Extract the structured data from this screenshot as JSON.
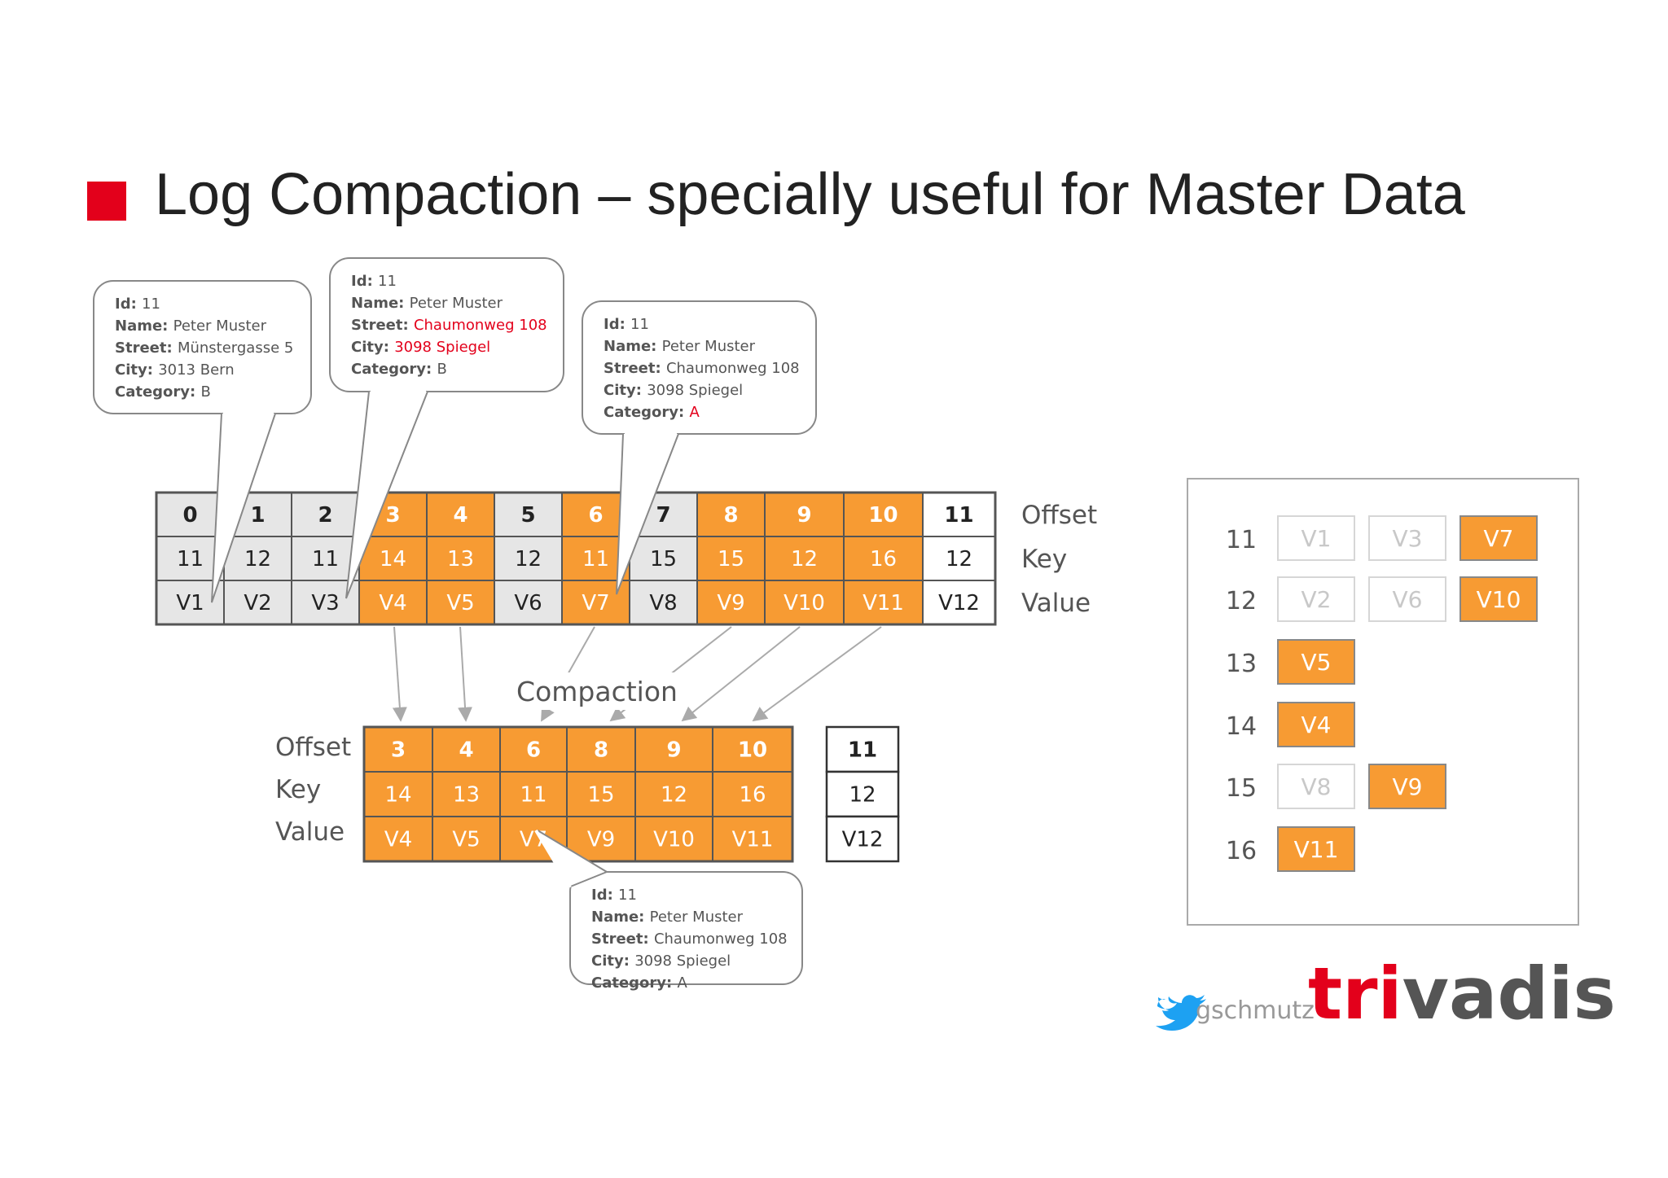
{
  "title": "Log Compaction – specially useful for Master Data",
  "colors": {
    "accent": "#e3001b",
    "orange": "#f79b33",
    "grey_cell": "#e6e6e6",
    "border": "#555555",
    "faded_text": "#c8c8c8"
  },
  "log": {
    "offsets": [
      "0",
      "1",
      "2",
      "3",
      "4",
      "5",
      "6",
      "7",
      "8",
      "9",
      "10",
      "11"
    ],
    "keys": [
      "11",
      "12",
      "11",
      "14",
      "13",
      "12",
      "11",
      "15",
      "15",
      "12",
      "16",
      "12"
    ],
    "values": [
      "V1",
      "V2",
      "V3",
      "V4",
      "V5",
      "V6",
      "V7",
      "V8",
      "V9",
      "V10",
      "V11",
      "V12"
    ],
    "states": [
      "grey",
      "grey",
      "grey",
      "orange",
      "orange",
      "grey",
      "orange",
      "grey",
      "orange",
      "orange",
      "orange",
      "white"
    ],
    "row_labels": [
      "Offset",
      "Key",
      "Value"
    ]
  },
  "compaction_label": "Compaction",
  "compacted": {
    "row_labels": [
      "Offset",
      "Key",
      "Value"
    ],
    "offsets": [
      "3",
      "4",
      "6",
      "8",
      "9",
      "10"
    ],
    "keys": [
      "14",
      "13",
      "11",
      "15",
      "12",
      "16"
    ],
    "values": [
      "V4",
      "V5",
      "V7",
      "V9",
      "V10",
      "V11"
    ],
    "active": {
      "offset": "11",
      "key": "12",
      "value": "V12"
    }
  },
  "callouts": [
    {
      "lines": [
        {
          "label": "Id:",
          "value": "11"
        },
        {
          "label": "Name:",
          "value": "Peter Muster"
        },
        {
          "label": "Street:",
          "value": "Münstergasse 5"
        },
        {
          "label": "City:",
          "value": "3013 Bern"
        },
        {
          "label": "Category:",
          "value": "B"
        }
      ]
    },
    {
      "lines": [
        {
          "label": "Id:",
          "value": "11"
        },
        {
          "label": "Name:",
          "value": "Peter Muster"
        },
        {
          "label": "Street:",
          "value": "Chaumonweg 108",
          "highlight": true
        },
        {
          "label": "City:",
          "value": "3098 Spiegel",
          "highlight": true
        },
        {
          "label": "Category:",
          "value": "B"
        }
      ]
    },
    {
      "lines": [
        {
          "label": "Id:",
          "value": "11"
        },
        {
          "label": "Name:",
          "value": "Peter Muster"
        },
        {
          "label": "Street:",
          "value": "Chaumonweg 108"
        },
        {
          "label": "City:",
          "value": "3098 Spiegel"
        },
        {
          "label": "Category:",
          "value": "A",
          "highlight": true
        }
      ]
    },
    {
      "lines": [
        {
          "label": "Id:",
          "value": "11"
        },
        {
          "label": "Name:",
          "value": "Peter Muster"
        },
        {
          "label": "Street:",
          "value": "Chaumonweg 108"
        },
        {
          "label": "City:",
          "value": "3098 Spiegel"
        },
        {
          "label": "Category:",
          "value": "A"
        }
      ]
    }
  ],
  "key_table": [
    {
      "key": "11",
      "values": [
        {
          "v": "V1",
          "active": false
        },
        {
          "v": "V3",
          "active": false
        },
        {
          "v": "V7",
          "active": true
        }
      ]
    },
    {
      "key": "12",
      "values": [
        {
          "v": "V2",
          "active": false
        },
        {
          "v": "V6",
          "active": false
        },
        {
          "v": "V10",
          "active": true
        }
      ]
    },
    {
      "key": "13",
      "values": [
        {
          "v": "V5",
          "active": true
        }
      ]
    },
    {
      "key": "14",
      "values": [
        {
          "v": "V4",
          "active": true
        }
      ]
    },
    {
      "key": "15",
      "values": [
        {
          "v": "V8",
          "active": false
        },
        {
          "v": "V9",
          "active": true
        }
      ]
    },
    {
      "key": "16",
      "values": [
        {
          "v": "V11",
          "active": true
        }
      ]
    }
  ],
  "footer": {
    "twitter_handle": "gschmutz",
    "brand_prefix": "tri",
    "brand_suffix": "vadis",
    "twitter_icon": "twitter-bird-icon"
  }
}
